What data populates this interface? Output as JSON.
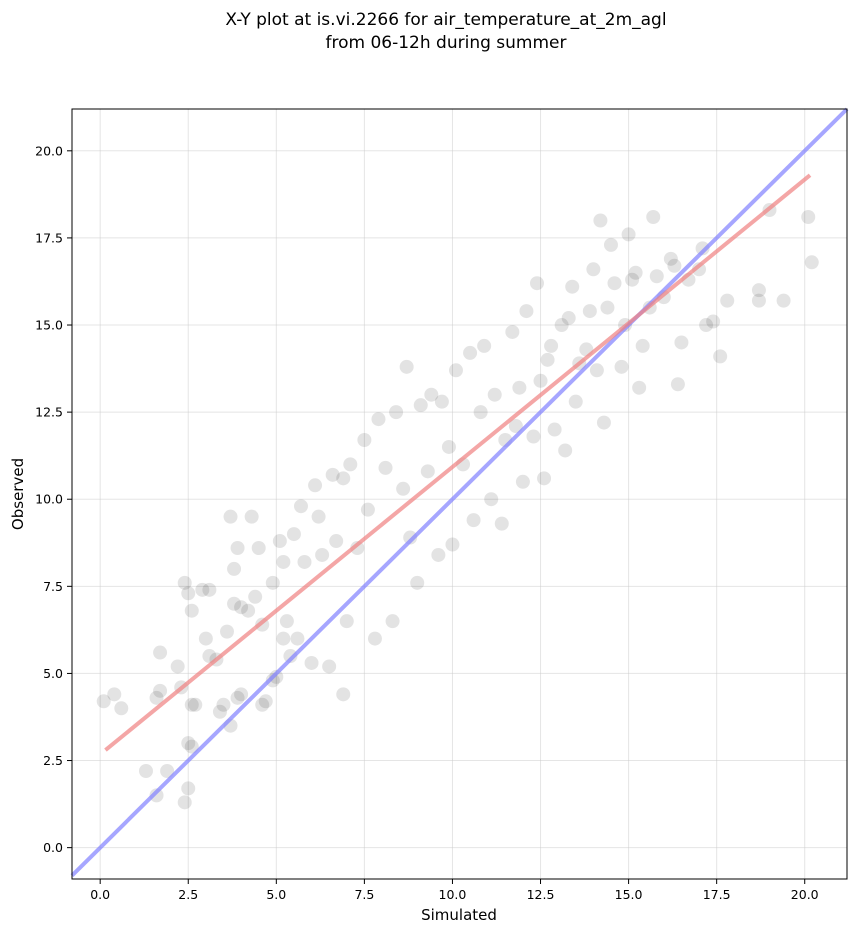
{
  "chart_data": {
    "type": "scatter",
    "title_line1": "X-Y plot at is.vi.2266 for air_temperature_at_2m_agl",
    "title_line2": "from 06-12h during summer",
    "xlabel": "Simulated",
    "ylabel": "Observed",
    "xlim": [
      -0.8,
      21.2
    ],
    "ylim": [
      -0.9,
      21.2
    ],
    "x_ticks": [
      0.0,
      2.5,
      5.0,
      7.5,
      10.0,
      12.5,
      15.0,
      17.5,
      20.0
    ],
    "x_tick_labels": [
      "0.0",
      "2.5",
      "5.0",
      "7.5",
      "10.0",
      "12.5",
      "15.0",
      "17.5",
      "20.0"
    ],
    "y_ticks": [
      0.0,
      2.5,
      5.0,
      7.5,
      10.0,
      12.5,
      15.0,
      17.5,
      20.0
    ],
    "y_tick_labels": [
      "0.0",
      "2.5",
      "5.0",
      "7.5",
      "10.0",
      "12.5",
      "15.0",
      "17.5",
      "20.0"
    ],
    "grid": true,
    "point_color": "#000000",
    "point_opacity": 0.09,
    "regression_line": {
      "color": "#f08080",
      "x": [
        0.15,
        20.15
      ],
      "y": [
        2.8,
        19.3
      ]
    },
    "identity_line": {
      "color": "#8080ff",
      "x": [
        -0.8,
        21.2
      ],
      "y": [
        -0.8,
        21.2
      ]
    },
    "points": [
      [
        0.1,
        4.2
      ],
      [
        0.4,
        4.4
      ],
      [
        0.6,
        4.0
      ],
      [
        1.3,
        2.2
      ],
      [
        1.6,
        1.5
      ],
      [
        1.7,
        5.6
      ],
      [
        1.9,
        2.2
      ],
      [
        1.6,
        4.3
      ],
      [
        1.7,
        4.5
      ],
      [
        2.2,
        5.2
      ],
      [
        2.3,
        4.6
      ],
      [
        2.4,
        1.3
      ],
      [
        2.5,
        1.7
      ],
      [
        2.5,
        3.0
      ],
      [
        2.6,
        2.9
      ],
      [
        2.4,
        7.6
      ],
      [
        2.5,
        7.3
      ],
      [
        2.6,
        6.8
      ],
      [
        2.7,
        4.1
      ],
      [
        2.6,
        4.1
      ],
      [
        2.9,
        7.4
      ],
      [
        3.1,
        7.4
      ],
      [
        3.0,
        6.0
      ],
      [
        3.1,
        5.5
      ],
      [
        3.3,
        5.4
      ],
      [
        3.4,
        3.9
      ],
      [
        3.5,
        4.1
      ],
      [
        3.6,
        6.2
      ],
      [
        3.7,
        3.5
      ],
      [
        3.7,
        9.5
      ],
      [
        3.8,
        8.0
      ],
      [
        3.9,
        8.6
      ],
      [
        3.8,
        7.0
      ],
      [
        4.0,
        6.9
      ],
      [
        3.9,
        4.3
      ],
      [
        4.0,
        4.4
      ],
      [
        4.2,
        6.8
      ],
      [
        4.3,
        9.5
      ],
      [
        4.4,
        7.2
      ],
      [
        4.5,
        8.6
      ],
      [
        4.6,
        6.4
      ],
      [
        4.6,
        4.1
      ],
      [
        4.7,
        4.2
      ],
      [
        4.9,
        7.6
      ],
      [
        4.9,
        4.8
      ],
      [
        5.0,
        4.9
      ],
      [
        5.1,
        8.8
      ],
      [
        5.2,
        8.2
      ],
      [
        5.3,
        6.5
      ],
      [
        5.2,
        6.0
      ],
      [
        5.4,
        5.5
      ],
      [
        5.5,
        9.0
      ],
      [
        5.7,
        9.8
      ],
      [
        5.8,
        8.2
      ],
      [
        5.6,
        6.0
      ],
      [
        6.0,
        5.3
      ],
      [
        6.1,
        10.4
      ],
      [
        6.2,
        9.5
      ],
      [
        6.3,
        8.4
      ],
      [
        6.5,
        5.2
      ],
      [
        6.6,
        10.7
      ],
      [
        6.7,
        8.8
      ],
      [
        6.9,
        10.6
      ],
      [
        6.9,
        4.4
      ],
      [
        7.0,
        6.5
      ],
      [
        7.1,
        11.0
      ],
      [
        7.3,
        8.6
      ],
      [
        7.5,
        11.7
      ],
      [
        7.6,
        9.7
      ],
      [
        7.8,
        6.0
      ],
      [
        7.9,
        12.3
      ],
      [
        8.1,
        10.9
      ],
      [
        8.3,
        6.5
      ],
      [
        8.4,
        12.5
      ],
      [
        8.6,
        10.3
      ],
      [
        8.7,
        13.8
      ],
      [
        8.8,
        8.9
      ],
      [
        9.0,
        7.6
      ],
      [
        9.1,
        12.7
      ],
      [
        9.3,
        10.8
      ],
      [
        9.4,
        13.0
      ],
      [
        9.6,
        8.4
      ],
      [
        9.7,
        12.8
      ],
      [
        9.9,
        11.5
      ],
      [
        10.0,
        8.7
      ],
      [
        10.1,
        13.7
      ],
      [
        10.3,
        11.0
      ],
      [
        10.5,
        14.2
      ],
      [
        10.6,
        9.4
      ],
      [
        10.8,
        12.5
      ],
      [
        10.9,
        14.4
      ],
      [
        11.1,
        10.0
      ],
      [
        11.2,
        13.0
      ],
      [
        11.4,
        9.3
      ],
      [
        11.5,
        11.7
      ],
      [
        11.7,
        14.8
      ],
      [
        11.8,
        12.1
      ],
      [
        12.0,
        10.5
      ],
      [
        12.1,
        15.4
      ],
      [
        12.3,
        11.8
      ],
      [
        12.4,
        16.2
      ],
      [
        12.5,
        13.4
      ],
      [
        12.6,
        10.6
      ],
      [
        12.8,
        14.4
      ],
      [
        12.9,
        12.0
      ],
      [
        13.1,
        15.0
      ],
      [
        13.2,
        11.4
      ],
      [
        13.4,
        16.1
      ],
      [
        13.5,
        12.8
      ],
      [
        13.6,
        13.9
      ],
      [
        13.8,
        14.3
      ],
      [
        13.9,
        15.4
      ],
      [
        14.0,
        16.6
      ],
      [
        14.1,
        13.7
      ],
      [
        14.2,
        18.0
      ],
      [
        14.3,
        12.2
      ],
      [
        14.4,
        15.5
      ],
      [
        14.6,
        16.2
      ],
      [
        14.8,
        13.8
      ],
      [
        14.9,
        15.0
      ],
      [
        15.0,
        17.6
      ],
      [
        15.1,
        16.3
      ],
      [
        15.3,
        13.2
      ],
      [
        15.4,
        14.4
      ],
      [
        15.6,
        15.5
      ],
      [
        15.7,
        18.1
      ],
      [
        15.8,
        16.4
      ],
      [
        16.0,
        15.8
      ],
      [
        16.2,
        16.9
      ],
      [
        16.4,
        13.3
      ],
      [
        16.5,
        14.5
      ],
      [
        16.7,
        16.3
      ],
      [
        17.0,
        16.6
      ],
      [
        17.2,
        15.0
      ],
      [
        17.4,
        15.1
      ],
      [
        17.6,
        14.1
      ],
      [
        17.8,
        15.7
      ],
      [
        18.7,
        15.7
      ],
      [
        18.7,
        16.0
      ],
      [
        19.0,
        18.3
      ],
      [
        19.4,
        15.7
      ],
      [
        20.1,
        18.1
      ],
      [
        20.2,
        16.8
      ],
      [
        17.1,
        17.2
      ],
      [
        16.3,
        16.7
      ],
      [
        15.2,
        16.5
      ],
      [
        14.5,
        17.3
      ],
      [
        13.3,
        15.2
      ],
      [
        12.7,
        14.0
      ],
      [
        11.9,
        13.2
      ]
    ]
  }
}
